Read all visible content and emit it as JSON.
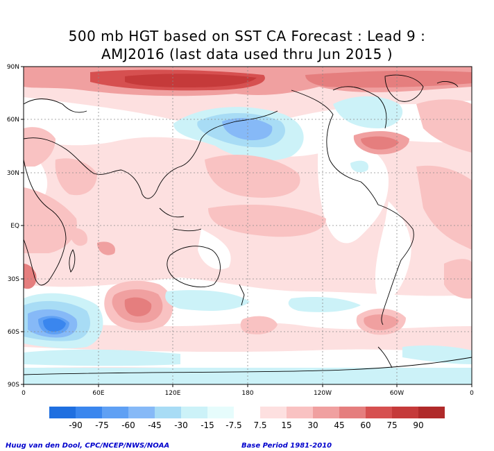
{
  "title": {
    "line1": "500 mb HGT based on SST CA Forecast : Lead 9 :",
    "line2": "AMJ2016 (last data used thru Jun 2015 )"
  },
  "map": {
    "lat_labels": [
      "90N",
      "60N",
      "30N",
      "EQ",
      "30S",
      "60S",
      "90S"
    ],
    "lon_labels": [
      "0",
      "60E",
      "120E",
      "180",
      "120W",
      "60W",
      "0"
    ]
  },
  "legend": {
    "labels": [
      "-90",
      "-75",
      "-60",
      "-45",
      "-30",
      "-15",
      "-7.5",
      "7.5",
      "15",
      "30",
      "45",
      "60",
      "75",
      "90"
    ],
    "colors": [
      "#1f6fe0",
      "#3a86ee",
      "#5fa0f4",
      "#86b9f7",
      "#a8dcf5",
      "#ccf2f8",
      "#e6fcfc",
      "#ffffff",
      "#fde0e0",
      "#f9c2c2",
      "#f0a0a0",
      "#e57e7e",
      "#d65050",
      "#c53a3a",
      "#b02a2a"
    ]
  },
  "credits": {
    "left": "Huug van den Dool, CPC/NCEP/NWS/NOAA",
    "right": "Base Period 1981-2010"
  }
}
